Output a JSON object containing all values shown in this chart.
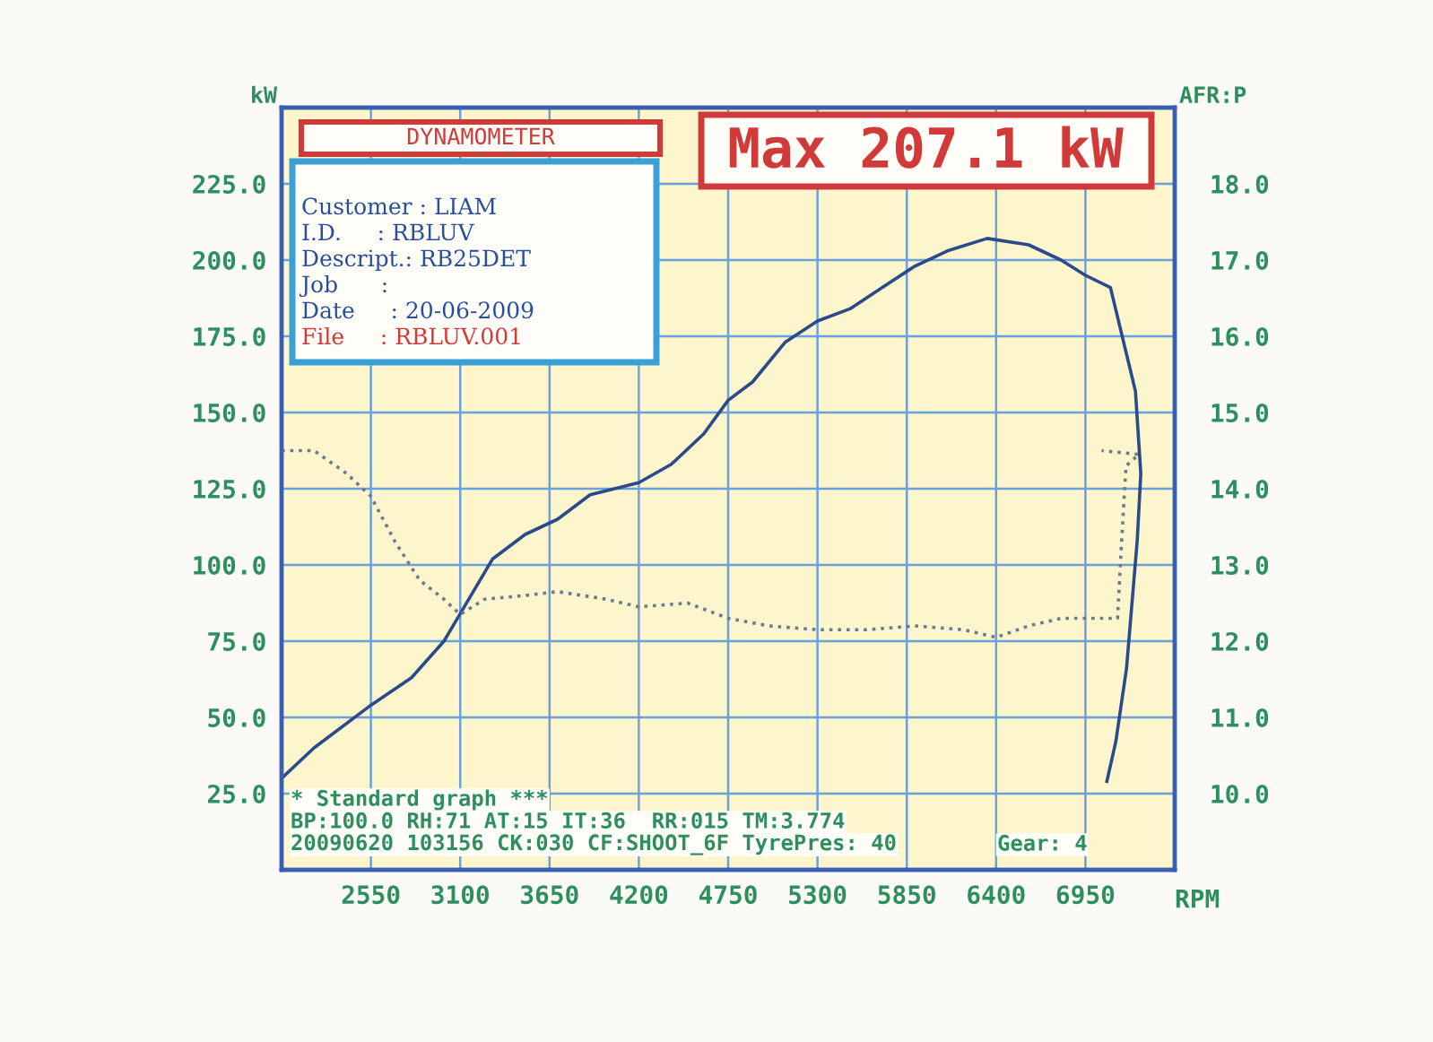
{
  "chart_data": {
    "type": "line",
    "xlabel": "RPM",
    "ylabel": "kW",
    "y2label": "AFR:P",
    "xlim": [
      2000,
      7500
    ],
    "xticks": [
      2550,
      3100,
      3650,
      4200,
      4750,
      5300,
      5850,
      6400,
      6950
    ],
    "ylim": [
      0,
      250
    ],
    "yticks": [
      {
        "value": 25,
        "label": "25.0"
      },
      {
        "value": 50,
        "label": "50.0"
      },
      {
        "value": 75,
        "label": "75.0"
      },
      {
        "value": 100,
        "label": "100.0"
      },
      {
        "value": 125,
        "label": "125.0"
      },
      {
        "value": 150,
        "label": "150.0"
      },
      {
        "value": 175,
        "label": "175.0"
      },
      {
        "value": 200,
        "label": "200.0"
      },
      {
        "value": 225,
        "label": "225.0"
      }
    ],
    "y2lim": [
      9,
      19
    ],
    "y2ticks": [
      {
        "value": 10,
        "label": "10.0"
      },
      {
        "value": 11,
        "label": "11.0"
      },
      {
        "value": 12,
        "label": "12.0"
      },
      {
        "value": 13,
        "label": "13.0"
      },
      {
        "value": 14,
        "label": "14.0"
      },
      {
        "value": 15,
        "label": "15.0"
      },
      {
        "value": 16,
        "label": "16.0"
      },
      {
        "value": 17,
        "label": "17.0"
      },
      {
        "value": 18,
        "label": "18.0"
      }
    ],
    "grid": true,
    "marker": "none",
    "series": [
      {
        "color": "#2b4a8a",
        "line_style": "solid",
        "x": [
          2000,
          2200,
          2550,
          2800,
          3000,
          3100,
          3300,
          3500,
          3700,
          3900,
          4200,
          4400,
          4600,
          4750,
          4900,
          5100,
          5300,
          5500,
          5700,
          5900,
          6100,
          6345,
          6600,
          6800,
          6950,
          7104,
          7258,
          7291,
          7269,
          7203,
          7137,
          7082
        ],
        "values": [
          30,
          40,
          54,
          63,
          75,
          84,
          102,
          110,
          115,
          123,
          127,
          133,
          143,
          154,
          160,
          173,
          180,
          184,
          191,
          198,
          203,
          207.1,
          205,
          200,
          195,
          191,
          157,
          130,
          108,
          66,
          42,
          29
        ]
      },
      {
        "color": "#6a7a90",
        "line_style": "dotted",
        "axis": "y2",
        "x": [
          2000,
          2200,
          2400,
          2550,
          2700,
          2850,
          3000,
          3100,
          3250,
          3500,
          3700,
          4000,
          4200,
          4500,
          4750,
          5000,
          5300,
          5600,
          5900,
          6200,
          6400,
          6600,
          6800,
          7000,
          7148,
          7170,
          7200,
          7280,
          7050
        ],
        "values": [
          14.5,
          14.5,
          14.2,
          13.9,
          13.3,
          12.8,
          12.55,
          12.35,
          12.55,
          12.6,
          12.65,
          12.55,
          12.45,
          12.5,
          12.3,
          12.2,
          12.15,
          12.15,
          12.2,
          12.15,
          12.05,
          12.2,
          12.3,
          12.3,
          12.3,
          13.2,
          14.3,
          14.45,
          14.5
        ]
      }
    ],
    "annotations": [
      "DYNAMOMETER",
      "Customer : LIAM",
      "I.D.     : RBLUV",
      "Descript.: RB25DET",
      "Job      :",
      "Date     : 20-06-2009",
      "File     : RBLUV.001",
      "Max 207.1 kW",
      "* Standard graph ***",
      "BP:100.0 RH:71 AT:15 IT:36  RR:015 TM:3.774",
      "20090620 103156 CK:030 CF:SHOOT_6F TyrePres: 40",
      "Gear: 4"
    ]
  }
}
